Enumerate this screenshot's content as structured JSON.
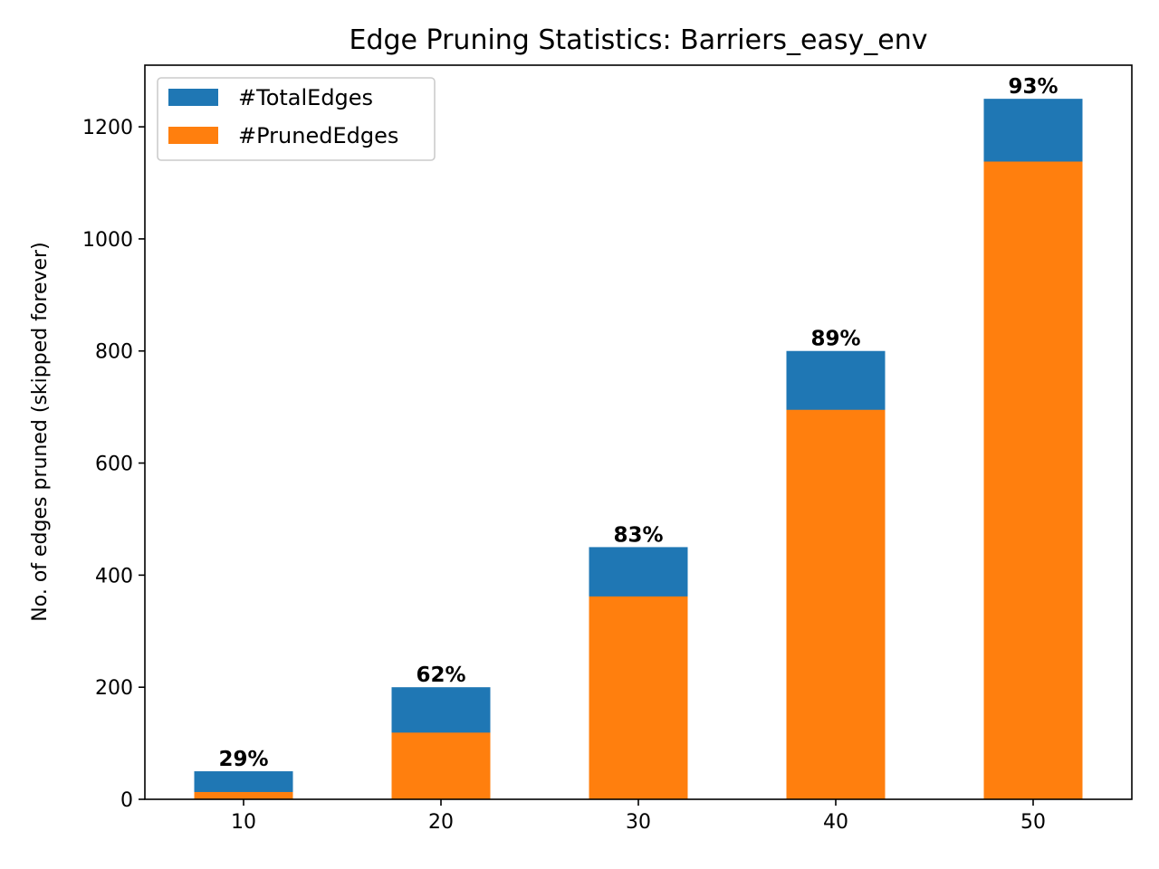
{
  "chart_data": {
    "type": "bar",
    "stacked": "overlay",
    "title": "Edge Pruning Statistics: Barriers_easy_env",
    "xlabel": "",
    "ylabel": "No. of edges pruned (skipped forever)",
    "categories": [
      "10",
      "20",
      "30",
      "40",
      "50"
    ],
    "xlim": [
      5,
      55
    ],
    "ylim": [
      0,
      1310
    ],
    "x_ticks": [
      "10",
      "20",
      "30",
      "40",
      "50"
    ],
    "y_ticks": [
      0,
      200,
      400,
      600,
      800,
      1000,
      1200
    ],
    "series": [
      {
        "name": "#TotalEdges",
        "color": "#1f77b4",
        "values": [
          50,
          200,
          450,
          800,
          1250
        ]
      },
      {
        "name": "#PrunedEdges",
        "color": "#ff7f0e",
        "values": [
          13,
          119,
          362,
          695,
          1138
        ]
      }
    ],
    "bar_labels": [
      "29%",
      "62%",
      "83%",
      "89%",
      "93%"
    ],
    "grid": false,
    "legend": "top-left"
  }
}
